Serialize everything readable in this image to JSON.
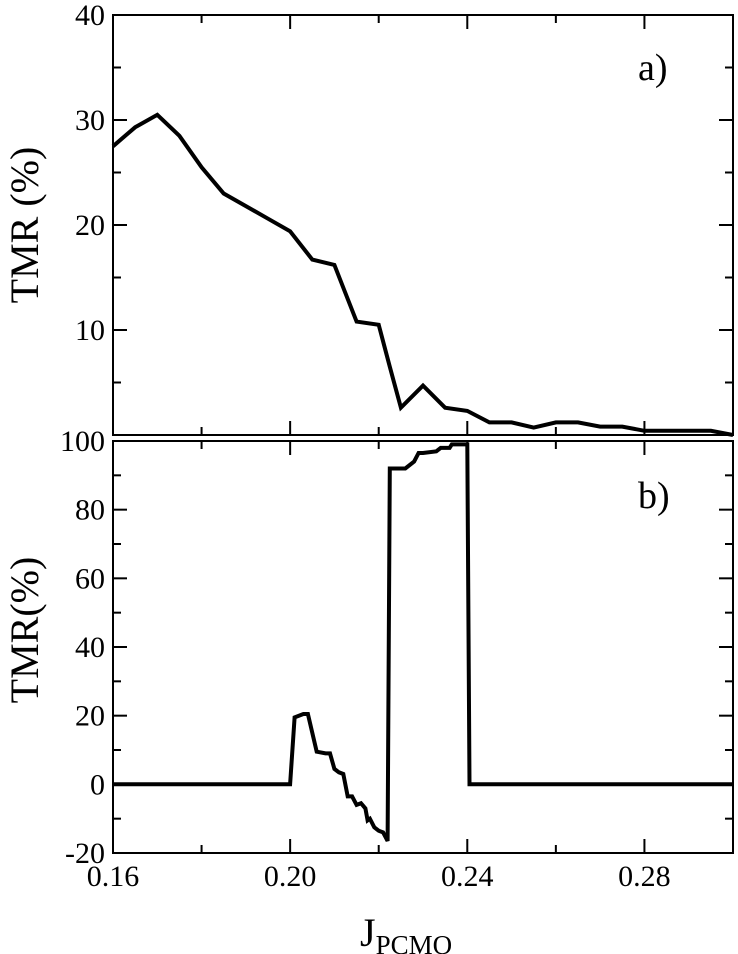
{
  "chart_data": [
    {
      "type": "line",
      "panel_label": "a)",
      "ylabel": "TMR (%)",
      "xlim": [
        0.16,
        0.3
      ],
      "ylim": [
        0,
        40
      ],
      "x_ticks": [],
      "y_ticks": [
        10,
        20,
        30,
        40
      ],
      "y_tick_labels": [
        "10",
        "20",
        "30",
        "40"
      ],
      "series": [
        {
          "color": "#000000",
          "points": [
            [
              0.16,
              27.5
            ],
            [
              0.165,
              29.3
            ],
            [
              0.17,
              30.5
            ],
            [
              0.175,
              28.5
            ],
            [
              0.18,
              25.5
            ],
            [
              0.185,
              23.0
            ],
            [
              0.19,
              21.8
            ],
            [
              0.195,
              20.6
            ],
            [
              0.2,
              19.4
            ],
            [
              0.205,
              16.7
            ],
            [
              0.21,
              16.2
            ],
            [
              0.2125,
              13.5
            ],
            [
              0.215,
              10.8
            ],
            [
              0.22,
              10.5
            ],
            [
              0.2225,
              6.5
            ],
            [
              0.225,
              2.6
            ],
            [
              0.23,
              4.7
            ],
            [
              0.235,
              2.6
            ],
            [
              0.24,
              2.3
            ],
            [
              0.245,
              1.2
            ],
            [
              0.25,
              1.2
            ],
            [
              0.255,
              0.7
            ],
            [
              0.26,
              1.2
            ],
            [
              0.265,
              1.2
            ],
            [
              0.27,
              0.8
            ],
            [
              0.275,
              0.8
            ],
            [
              0.28,
              0.4
            ],
            [
              0.285,
              0.4
            ],
            [
              0.29,
              0.4
            ],
            [
              0.295,
              0.4
            ],
            [
              0.3,
              0.0
            ]
          ]
        }
      ]
    },
    {
      "type": "line",
      "panel_label": "b)",
      "ylabel": "TMR(%)",
      "xlabel_main": "J",
      "xlabel_sub": "PCMO",
      "xlim": [
        0.16,
        0.3
      ],
      "ylim": [
        -20,
        100
      ],
      "x_ticks": [
        0.16,
        0.2,
        0.24,
        0.28
      ],
      "x_tick_labels": [
        "0.16",
        "0.20",
        "0.24",
        "0.28"
      ],
      "y_ticks": [
        -20,
        0,
        20,
        40,
        60,
        80,
        100
      ],
      "y_tick_labels": [
        "-20",
        "0",
        "20",
        "40",
        "60",
        "80",
        "100"
      ],
      "series": [
        {
          "color": "#000000",
          "points": [
            [
              0.16,
              0
            ],
            [
              0.2,
              0
            ],
            [
              0.201,
              19.5
            ],
            [
              0.203,
              20.5
            ],
            [
              0.204,
              20.5
            ],
            [
              0.206,
              9.5
            ],
            [
              0.208,
              9.0
            ],
            [
              0.209,
              9.0
            ],
            [
              0.21,
              4.5
            ],
            [
              0.211,
              3.5
            ],
            [
              0.212,
              3.0
            ],
            [
              0.213,
              -3.5
            ],
            [
              0.214,
              -3.5
            ],
            [
              0.215,
              -6.0
            ],
            [
              0.216,
              -5.5
            ],
            [
              0.217,
              -7.0
            ],
            [
              0.2175,
              -10.5
            ],
            [
              0.218,
              -10.0
            ],
            [
              0.219,
              -12.5
            ],
            [
              0.22,
              -13.5
            ],
            [
              0.221,
              -14.0
            ],
            [
              0.222,
              -16.5
            ],
            [
              0.2225,
              92.0
            ],
            [
              0.225,
              92.0
            ],
            [
              0.226,
              92.0
            ],
            [
              0.228,
              94.0
            ],
            [
              0.229,
              96.5
            ],
            [
              0.23,
              96.5
            ],
            [
              0.233,
              97.0
            ],
            [
              0.234,
              98.0
            ],
            [
              0.236,
              98.0
            ],
            [
              0.2365,
              99.0
            ],
            [
              0.24,
              99.0
            ],
            [
              0.2405,
              0
            ],
            [
              0.3,
              0
            ]
          ]
        }
      ]
    }
  ]
}
